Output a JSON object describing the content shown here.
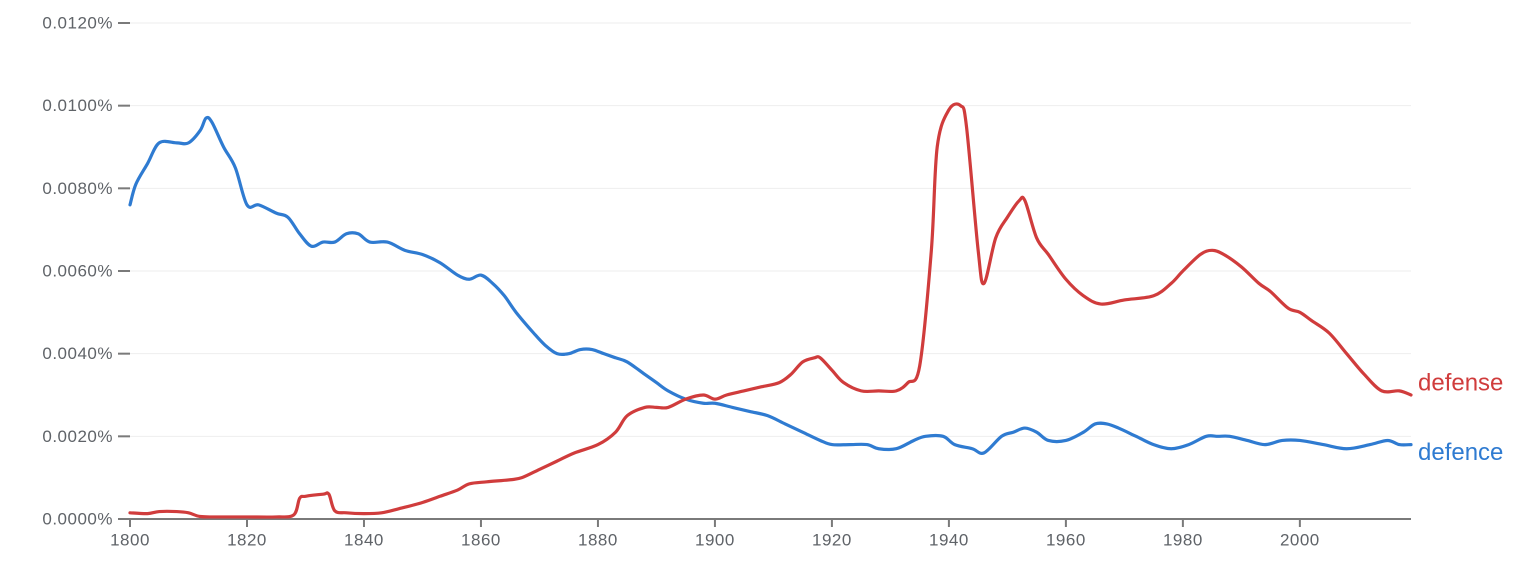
{
  "chart_data": {
    "type": "line",
    "title": "",
    "xlabel": "",
    "ylabel": "",
    "xlim": [
      1800,
      2019
    ],
    "ylim": [
      0,
      0.012
    ],
    "grid": true,
    "legend": "right-end-labels",
    "y_ticks": [
      {
        "value": 0.0,
        "label": "0.0000%"
      },
      {
        "value": 0.002,
        "label": "0.0020%"
      },
      {
        "value": 0.004,
        "label": "0.0040%"
      },
      {
        "value": 0.006,
        "label": "0.0060%"
      },
      {
        "value": 0.008,
        "label": "0.0080%"
      },
      {
        "value": 0.01,
        "label": "0.0100%"
      },
      {
        "value": 0.012,
        "label": "0.0120%"
      }
    ],
    "x_ticks": [
      {
        "value": 1800,
        "label": "1800"
      },
      {
        "value": 1820,
        "label": "1820"
      },
      {
        "value": 1840,
        "label": "1840"
      },
      {
        "value": 1860,
        "label": "1860"
      },
      {
        "value": 1880,
        "label": "1880"
      },
      {
        "value": 1900,
        "label": "1900"
      },
      {
        "value": 1920,
        "label": "1920"
      },
      {
        "value": 1940,
        "label": "1940"
      },
      {
        "value": 1960,
        "label": "1960"
      },
      {
        "value": 1980,
        "label": "1980"
      },
      {
        "value": 2000,
        "label": "2000"
      }
    ],
    "series": [
      {
        "name": "defense",
        "color": "#d03c3c",
        "points": [
          [
            1800,
            0.00015
          ],
          [
            1803,
            0.00013
          ],
          [
            1805,
            0.00018
          ],
          [
            1808,
            0.00018
          ],
          [
            1810,
            0.00015
          ],
          [
            1812,
            6e-05
          ],
          [
            1815,
            5e-05
          ],
          [
            1820,
            5e-05
          ],
          [
            1825,
            5e-05
          ],
          [
            1828,
            0.0001
          ],
          [
            1829,
            0.0005
          ],
          [
            1830,
            0.00055
          ],
          [
            1833,
            0.0006
          ],
          [
            1834,
            0.0006
          ],
          [
            1835,
            0.0002
          ],
          [
            1837,
            0.00015
          ],
          [
            1840,
            0.00013
          ],
          [
            1843,
            0.00015
          ],
          [
            1846,
            0.00025
          ],
          [
            1850,
            0.0004
          ],
          [
            1853,
            0.00055
          ],
          [
            1856,
            0.0007
          ],
          [
            1858,
            0.00085
          ],
          [
            1861,
            0.0009
          ],
          [
            1865,
            0.00095
          ],
          [
            1867,
            0.001
          ],
          [
            1870,
            0.0012
          ],
          [
            1873,
            0.0014
          ],
          [
            1876,
            0.0016
          ],
          [
            1880,
            0.0018
          ],
          [
            1883,
            0.0021
          ],
          [
            1885,
            0.0025
          ],
          [
            1888,
            0.0027
          ],
          [
            1890,
            0.0027
          ],
          [
            1892,
            0.0027
          ],
          [
            1895,
            0.0029
          ],
          [
            1898,
            0.003
          ],
          [
            1900,
            0.0029
          ],
          [
            1902,
            0.003
          ],
          [
            1905,
            0.0031
          ],
          [
            1908,
            0.0032
          ],
          [
            1911,
            0.0033
          ],
          [
            1913,
            0.0035
          ],
          [
            1915,
            0.0038
          ],
          [
            1917,
            0.0039
          ],
          [
            1918,
            0.0039
          ],
          [
            1920,
            0.0036
          ],
          [
            1922,
            0.0033
          ],
          [
            1925,
            0.0031
          ],
          [
            1928,
            0.0031
          ],
          [
            1931,
            0.0031
          ],
          [
            1933,
            0.0033
          ],
          [
            1935,
            0.0037
          ],
          [
            1937,
            0.0065
          ],
          [
            1938,
            0.009
          ],
          [
            1940,
            0.0099
          ],
          [
            1942,
            0.01
          ],
          [
            1943,
            0.0095
          ],
          [
            1945,
            0.0065
          ],
          [
            1946,
            0.0057
          ],
          [
            1948,
            0.0068
          ],
          [
            1950,
            0.0073
          ],
          [
            1952,
            0.0077
          ],
          [
            1953,
            0.0077
          ],
          [
            1955,
            0.0068
          ],
          [
            1957,
            0.0064
          ],
          [
            1960,
            0.0058
          ],
          [
            1963,
            0.0054
          ],
          [
            1966,
            0.0052
          ],
          [
            1970,
            0.0053
          ],
          [
            1975,
            0.0054
          ],
          [
            1978,
            0.0057
          ],
          [
            1980,
            0.006
          ],
          [
            1983,
            0.0064
          ],
          [
            1985,
            0.0065
          ],
          [
            1987,
            0.0064
          ],
          [
            1990,
            0.0061
          ],
          [
            1993,
            0.0057
          ],
          [
            1995,
            0.0055
          ],
          [
            1998,
            0.0051
          ],
          [
            2000,
            0.005
          ],
          [
            2002,
            0.0048
          ],
          [
            2005,
            0.0045
          ],
          [
            2008,
            0.004
          ],
          [
            2011,
            0.0035
          ],
          [
            2014,
            0.0031
          ],
          [
            2017,
            0.0031
          ],
          [
            2019,
            0.003
          ]
        ]
      },
      {
        "name": "defence",
        "color": "#2f7bd1",
        "points": [
          [
            1800,
            0.0076
          ],
          [
            1801,
            0.0081
          ],
          [
            1803,
            0.0086
          ],
          [
            1805,
            0.0091
          ],
          [
            1808,
            0.0091
          ],
          [
            1810,
            0.0091
          ],
          [
            1812,
            0.0094
          ],
          [
            1813,
            0.0097
          ],
          [
            1814,
            0.0096
          ],
          [
            1816,
            0.009
          ],
          [
            1818,
            0.0085
          ],
          [
            1820,
            0.0076
          ],
          [
            1822,
            0.0076
          ],
          [
            1825,
            0.0074
          ],
          [
            1827,
            0.0073
          ],
          [
            1829,
            0.0069
          ],
          [
            1831,
            0.0066
          ],
          [
            1833,
            0.0067
          ],
          [
            1835,
            0.0067
          ],
          [
            1837,
            0.0069
          ],
          [
            1839,
            0.0069
          ],
          [
            1841,
            0.0067
          ],
          [
            1844,
            0.0067
          ],
          [
            1847,
            0.0065
          ],
          [
            1850,
            0.0064
          ],
          [
            1853,
            0.0062
          ],
          [
            1856,
            0.0059
          ],
          [
            1858,
            0.0058
          ],
          [
            1860,
            0.0059
          ],
          [
            1862,
            0.0057
          ],
          [
            1864,
            0.0054
          ],
          [
            1866,
            0.005
          ],
          [
            1869,
            0.0045
          ],
          [
            1871,
            0.0042
          ],
          [
            1873,
            0.004
          ],
          [
            1875,
            0.004
          ],
          [
            1877,
            0.0041
          ],
          [
            1879,
            0.0041
          ],
          [
            1881,
            0.004
          ],
          [
            1883,
            0.0039
          ],
          [
            1885,
            0.0038
          ],
          [
            1888,
            0.0035
          ],
          [
            1890,
            0.0033
          ],
          [
            1892,
            0.0031
          ],
          [
            1895,
            0.0029
          ],
          [
            1898,
            0.0028
          ],
          [
            1900,
            0.0028
          ],
          [
            1903,
            0.0027
          ],
          [
            1906,
            0.0026
          ],
          [
            1909,
            0.0025
          ],
          [
            1912,
            0.0023
          ],
          [
            1915,
            0.0021
          ],
          [
            1918,
            0.0019
          ],
          [
            1920,
            0.0018
          ],
          [
            1923,
            0.0018
          ],
          [
            1926,
            0.0018
          ],
          [
            1928,
            0.0017
          ],
          [
            1931,
            0.0017
          ],
          [
            1934,
            0.0019
          ],
          [
            1936,
            0.002
          ],
          [
            1939,
            0.002
          ],
          [
            1941,
            0.0018
          ],
          [
            1944,
            0.0017
          ],
          [
            1946,
            0.0016
          ],
          [
            1949,
            0.002
          ],
          [
            1951,
            0.0021
          ],
          [
            1953,
            0.0022
          ],
          [
            1955,
            0.0021
          ],
          [
            1957,
            0.0019
          ],
          [
            1960,
            0.0019
          ],
          [
            1963,
            0.0021
          ],
          [
            1965,
            0.0023
          ],
          [
            1967,
            0.0023
          ],
          [
            1969,
            0.0022
          ],
          [
            1972,
            0.002
          ],
          [
            1975,
            0.0018
          ],
          [
            1978,
            0.0017
          ],
          [
            1981,
            0.0018
          ],
          [
            1984,
            0.002
          ],
          [
            1986,
            0.002
          ],
          [
            1988,
            0.002
          ],
          [
            1991,
            0.0019
          ],
          [
            1994,
            0.0018
          ],
          [
            1997,
            0.0019
          ],
          [
            2000,
            0.0019
          ],
          [
            2004,
            0.0018
          ],
          [
            2008,
            0.0017
          ],
          [
            2012,
            0.0018
          ],
          [
            2015,
            0.0019
          ],
          [
            2017,
            0.0018
          ],
          [
            2019,
            0.0018
          ]
        ]
      }
    ]
  }
}
